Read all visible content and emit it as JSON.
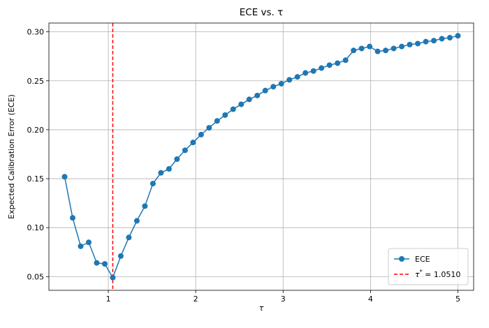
{
  "chart_data": {
    "type": "line",
    "title": "ECE vs. τ",
    "xlabel": "τ",
    "ylabel": "Expected Calibration Error (ECE)",
    "xlim": [
      0.32,
      5.18
    ],
    "ylim": [
      0.036,
      0.309
    ],
    "xticks": [
      1,
      2,
      3,
      4,
      5
    ],
    "xtick_labels": [
      "1",
      "2",
      "3",
      "4",
      "5"
    ],
    "yticks": [
      0.05,
      0.1,
      0.15,
      0.2,
      0.25,
      0.3
    ],
    "ytick_labels": [
      "0.05",
      "0.10",
      "0.15",
      "0.20",
      "0.25",
      "0.30"
    ],
    "grid": true,
    "legend_position": "bottom-right",
    "colors": {
      "series": "#1f77b4",
      "threshold": "#ff0000",
      "grid": "#b0b0b0"
    },
    "series": [
      {
        "name": "ECE",
        "marker": "circle",
        "x": [
          0.5,
          0.5918,
          0.6837,
          0.7755,
          0.8673,
          0.9592,
          1.051,
          1.1429,
          1.2347,
          1.3265,
          1.4184,
          1.5102,
          1.602,
          1.6939,
          1.7857,
          1.8776,
          1.9694,
          2.0612,
          2.1531,
          2.2449,
          2.3367,
          2.4286,
          2.5204,
          2.6122,
          2.7041,
          2.7959,
          2.8878,
          2.9796,
          3.0714,
          3.1633,
          3.2551,
          3.3469,
          3.4388,
          3.5306,
          3.6224,
          3.7143,
          3.8061,
          3.898,
          3.9898,
          4.0816,
          4.1735,
          4.2653,
          4.3571,
          4.449,
          4.5408,
          4.6327,
          4.7245,
          4.8163,
          4.9082,
          5.0
        ],
        "values": [
          0.152,
          0.11,
          0.081,
          0.085,
          0.064,
          0.063,
          0.049,
          0.071,
          0.09,
          0.107,
          0.122,
          0.145,
          0.156,
          0.16,
          0.17,
          0.179,
          0.187,
          0.195,
          0.202,
          0.209,
          0.215,
          0.221,
          0.226,
          0.231,
          0.235,
          0.24,
          0.244,
          0.247,
          0.251,
          0.254,
          0.258,
          0.26,
          0.263,
          0.266,
          0.268,
          0.271,
          0.281,
          0.283,
          0.285,
          0.28,
          0.281,
          0.283,
          0.285,
          0.287,
          0.288,
          0.29,
          0.291,
          0.293,
          0.294,
          0.296
        ]
      }
    ],
    "threshold": {
      "name": "τ* = 1.0510",
      "name_base": "τ",
      "name_sup": "*",
      "name_rest": " = 1.0510",
      "x": 1.051,
      "style": "dashed"
    }
  }
}
